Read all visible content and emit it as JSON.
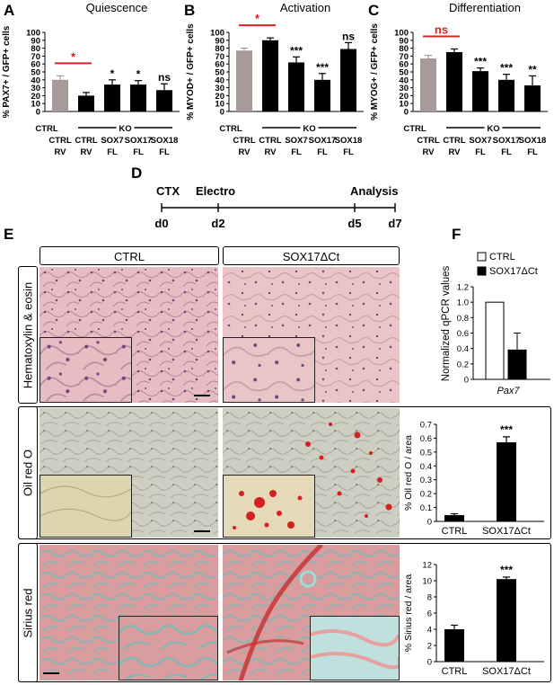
{
  "panels": {
    "A": {
      "letter": "A",
      "title": "Quiescence",
      "ylabel": "% PAX7+ / GFP+ cells"
    },
    "B": {
      "letter": "B",
      "title": "Activation",
      "ylabel": "% MYOD+ / GFP+ cells"
    },
    "C": {
      "letter": "C",
      "title": "Differentiation",
      "ylabel": "% MYOG+ / GFP+ cells"
    },
    "D": {
      "letter": "D"
    },
    "E": {
      "letter": "E",
      "col_ctrl": "CTRL",
      "col_sox": "SOX17ΔCt",
      "row_he": "Hematoxylin & eosin",
      "row_oil": "Oil red O",
      "row_sirius": "Sirius red"
    },
    "F": {
      "letter": "F"
    }
  },
  "timeline": {
    "labels_top": [
      "CTX",
      "Electro",
      "Analysis"
    ],
    "days": [
      "d0",
      "d2",
      "d5",
      "d7"
    ]
  },
  "chart_data": [
    {
      "id": "A",
      "type": "bar",
      "title": "Quiescence",
      "ylabel": "% PAX7+ / GFP+ cells",
      "ylim": [
        0,
        100
      ],
      "yticks": [
        0,
        10,
        20,
        30,
        40,
        50,
        60,
        70,
        80,
        90,
        100
      ],
      "categories": [
        "CTRL RV",
        "CTRL RV",
        "SOX7 FL",
        "SOX17 FL",
        "SOX18 FL"
      ],
      "cat_top": [
        "CTRL",
        "CTRL",
        "SOX7",
        "SOX17",
        "SOX18"
      ],
      "cat_bottom": [
        "RV",
        "RV",
        "FL",
        "FL",
        "FL"
      ],
      "group_label_left": "CTRL",
      "group_label_ko": "KO",
      "values": [
        40,
        20,
        34,
        34,
        27
      ],
      "errors": [
        5,
        4,
        6,
        5,
        8
      ],
      "colors": [
        "#a89a98",
        "#000000",
        "#000000",
        "#000000",
        "#000000"
      ],
      "significance": [
        "",
        "",
        "*",
        "*",
        "ns"
      ],
      "bracket_label": "*"
    },
    {
      "id": "B",
      "type": "bar",
      "title": "Activation",
      "ylabel": "% MYOD+ / GFP+ cells",
      "ylim": [
        0,
        100
      ],
      "yticks": [
        0,
        10,
        20,
        30,
        40,
        50,
        60,
        70,
        80,
        90,
        100
      ],
      "categories": [
        "CTRL RV",
        "CTRL RV",
        "SOX7 FL",
        "SOX17 FL",
        "SOX18 FL"
      ],
      "cat_top": [
        "CTRL",
        "CTRL",
        "SOX7",
        "SOX17",
        "SOX18"
      ],
      "cat_bottom": [
        "RV",
        "RV",
        "FL",
        "FL",
        "FL"
      ],
      "group_label_left": "CTRL",
      "group_label_ko": "KO",
      "values": [
        77,
        90,
        62,
        40,
        79
      ],
      "errors": [
        3,
        3,
        7,
        8,
        8
      ],
      "colors": [
        "#a89a98",
        "#000000",
        "#000000",
        "#000000",
        "#000000"
      ],
      "significance": [
        "",
        "",
        "***",
        "***",
        "ns"
      ],
      "bracket_label": "*"
    },
    {
      "id": "C",
      "type": "bar",
      "title": "Differentiation",
      "ylabel": "% MYOG+ / GFP+ cells",
      "ylim": [
        0,
        100
      ],
      "yticks": [
        0,
        10,
        20,
        30,
        40,
        50,
        60,
        70,
        80,
        90,
        100
      ],
      "categories": [
        "CTRL RV",
        "CTRL RV",
        "SOX7 FL",
        "SOX17 FL",
        "SOX18 FL"
      ],
      "cat_top": [
        "CTRL",
        "CTRL",
        "SOX7",
        "SOX17",
        "SOX18"
      ],
      "cat_bottom": [
        "RV",
        "RV",
        "FL",
        "FL",
        "FL"
      ],
      "group_label_left": "CTRL",
      "group_label_ko": "KO",
      "values": [
        67,
        75,
        51,
        40,
        33
      ],
      "errors": [
        4,
        4,
        4,
        7,
        12
      ],
      "colors": [
        "#a89a98",
        "#000000",
        "#000000",
        "#000000",
        "#000000"
      ],
      "significance": [
        "",
        "",
        "***",
        "***",
        "**"
      ],
      "bracket_label": "ns"
    },
    {
      "id": "F",
      "type": "bar",
      "ylabel": "Normalized qPCR values",
      "ylim": [
        0,
        1.2
      ],
      "yticks": [
        0,
        0.2,
        0.4,
        0.6,
        0.8,
        1.0,
        1.2
      ],
      "ytick_labels": [
        "0",
        "0.2",
        "0.4",
        "0.6",
        "0.8",
        "1.0",
        "1.2"
      ],
      "categories": [
        "Pax7"
      ],
      "series": [
        {
          "name": "CTRL",
          "values": [
            1.0
          ],
          "errors": [
            0
          ],
          "color": "#ffffff"
        },
        {
          "name": "SOX17ΔCt",
          "values": [
            0.38
          ],
          "errors": [
            0.22
          ],
          "color": "#000000"
        }
      ]
    },
    {
      "id": "E-oil",
      "type": "bar",
      "ylabel": "% Oil red O / area",
      "ylim": [
        0,
        0.7
      ],
      "yticks": [
        0,
        0.1,
        0.2,
        0.3,
        0.4,
        0.5,
        0.6,
        0.7
      ],
      "ytick_labels": [
        "0",
        "0.1",
        "0.2",
        "0.3",
        "0.4",
        "0.5",
        "0.6",
        "0.7"
      ],
      "categories": [
        "CTRL",
        "SOX17ΔCt"
      ],
      "values": [
        0.045,
        0.57
      ],
      "errors": [
        0.01,
        0.04
      ],
      "significance": [
        "",
        "***"
      ]
    },
    {
      "id": "E-sirius",
      "type": "bar",
      "ylabel": "% Sirius red / area",
      "ylim": [
        0,
        12
      ],
      "yticks": [
        0,
        2,
        4,
        6,
        8,
        10,
        12
      ],
      "ytick_labels": [
        "0",
        "2",
        "4",
        "6",
        "8",
        "10",
        "12"
      ],
      "categories": [
        "CTRL",
        "SOX17ΔCt"
      ],
      "values": [
        4.0,
        10.2
      ],
      "errors": [
        0.5,
        0.25
      ],
      "significance": [
        "",
        "***"
      ]
    }
  ],
  "colors": {
    "ctrl_bar": "#a89a98",
    "ko_bar": "#000000",
    "red_bracket": "#e02020",
    "he_bg": "#e8bcc0",
    "oil_bg": "#c9c8bc",
    "sirius_bg": "#d99a9a",
    "oil_drop": "#d42020"
  }
}
